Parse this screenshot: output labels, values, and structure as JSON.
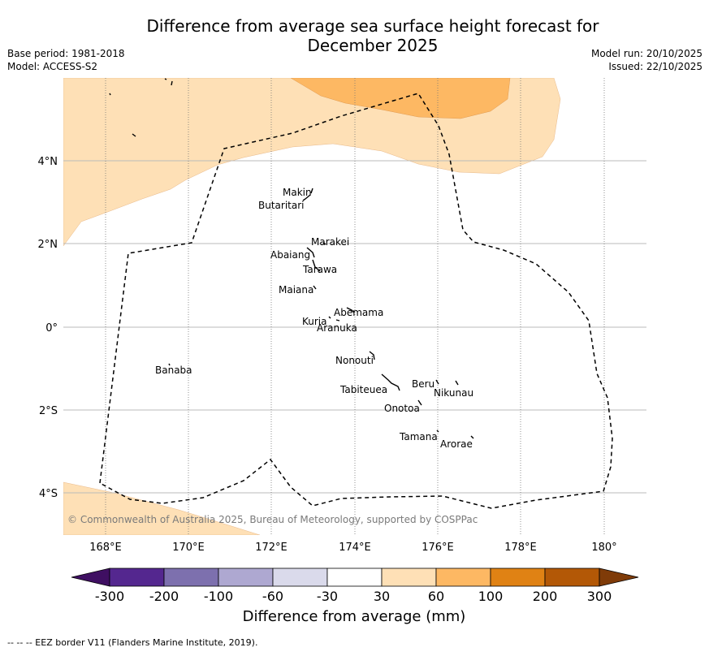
{
  "title_line1": "Difference from average sea surface height forecast for",
  "title_line2": "December 2025",
  "base_period": "Base period: 1981-2018",
  "model": "Model: ACCESS-S2",
  "model_run": "Model run: 20/10/2025",
  "issued": "Issued: 22/10/2025",
  "copyright": "© Commonwealth of Australia 2025, Bureau of Meteorology, supported by COSPPac",
  "lon_labels": [
    "168°E",
    "170°E",
    "172°E",
    "174°E",
    "176°E",
    "178°E",
    "180°"
  ],
  "lat_labels": [
    "4°N",
    "2°N",
    "0°",
    "2°S",
    "4°S"
  ],
  "places": [
    {
      "name": "Makin"
    },
    {
      "name": "Butaritari"
    },
    {
      "name": "Marakei"
    },
    {
      "name": "Abaiang"
    },
    {
      "name": "Tarawa"
    },
    {
      "name": "Maiana"
    },
    {
      "name": "Abemama"
    },
    {
      "name": "Kuria"
    },
    {
      "name": "Aranuka"
    },
    {
      "name": "Nonouti"
    },
    {
      "name": "Banaba"
    },
    {
      "name": "Beru"
    },
    {
      "name": "Nikunau"
    },
    {
      "name": "Tabiteuea"
    },
    {
      "name": "Onotoa"
    },
    {
      "name": "Tamana"
    },
    {
      "name": "Arorae"
    }
  ],
  "colorbar": {
    "ticks": [
      "-300",
      "-200",
      "-100",
      "-60",
      "-30",
      "30",
      "60",
      "100",
      "200",
      "300"
    ],
    "colors": [
      "#3f0f62",
      "#54278f",
      "#7d70ae",
      "#aea8d1",
      "#dadaeb",
      "#ffffff",
      "#fee0b6",
      "#fdb863",
      "#e08214",
      "#b35806",
      "#7f3b08"
    ],
    "label": "Difference from average (mm)"
  },
  "footer": "--  --  -- EEZ border V11 (Flanders Marine Institute, 2019)."
}
